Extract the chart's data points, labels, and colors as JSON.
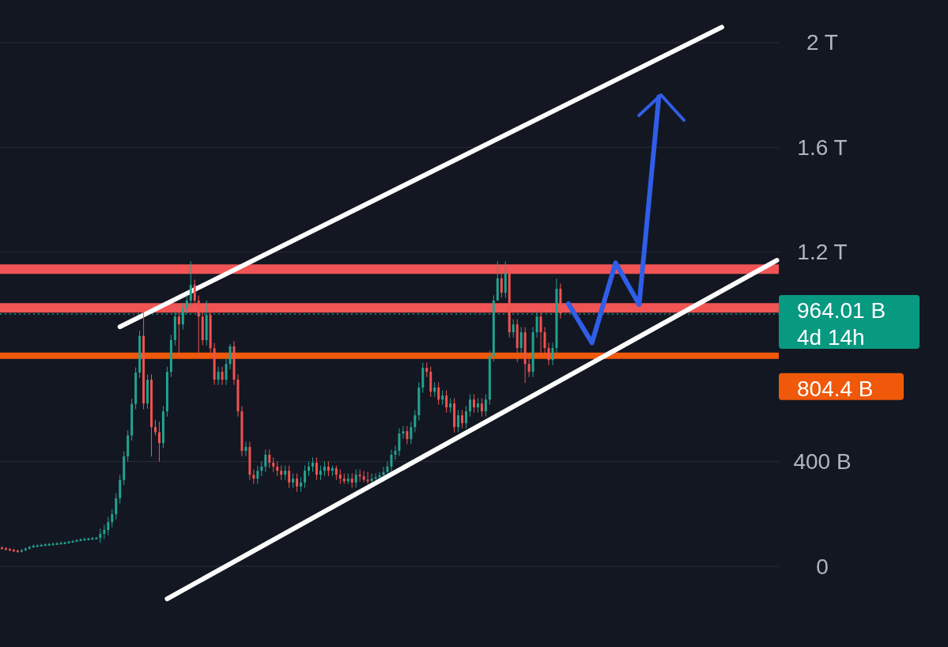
{
  "chart_data": {
    "type": "candlestick",
    "categories": [
      null,
      null,
      null,
      null,
      null,
      null,
      null,
      null,
      null,
      null,
      null,
      null,
      null,
      null,
      null,
      null,
      null,
      null,
      null,
      null,
      null,
      null,
      null,
      null,
      null,
      null,
      null,
      null,
      null,
      null,
      null,
      null,
      null,
      null,
      null,
      null,
      null,
      null,
      null,
      null,
      null,
      null,
      null,
      null,
      null,
      null,
      null,
      null,
      null,
      null,
      null,
      null,
      null,
      null,
      null,
      null,
      null,
      null,
      null,
      null,
      null,
      null,
      null,
      null,
      null,
      null,
      null,
      null,
      null,
      null,
      null,
      null,
      null,
      null,
      null,
      null,
      null,
      null,
      null,
      null,
      null,
      null,
      null,
      null,
      null,
      null,
      null,
      null,
      null,
      null,
      null,
      null,
      null,
      null,
      null,
      null,
      null,
      null,
      null,
      null,
      null,
      null,
      null,
      null,
      null,
      null,
      null,
      null,
      null,
      null,
      null,
      null,
      null,
      null,
      null,
      null,
      null,
      null,
      null,
      null,
      null,
      null,
      null,
      null,
      null,
      null,
      null,
      null,
      null,
      null,
      null,
      null,
      null,
      null,
      null,
      null,
      null,
      null,
      null,
      null,
      null,
      null,
      null,
      null,
      null,
      null,
      null,
      null,
      null,
      null,
      null,
      null,
      null,
      null,
      null,
      null,
      null,
      null,
      null,
      null,
      null,
      null,
      null,
      null,
      null,
      null,
      null,
      null,
      null,
      null,
      null,
      null,
      null,
      null,
      null,
      null,
      null,
      null,
      null,
      null,
      null,
      null,
      null,
      null,
      null,
      null,
      null,
      null,
      null,
      null,
      null,
      null,
      null,
      null,
      null,
      null,
      null,
      null
    ],
    "ohlc": [
      [
        72000000000.0,
        76000000000.0,
        65000000000.0,
        69000000000.0
      ],
      [
        69000000000.0,
        73000000000.0,
        62000000000.0,
        66000000000.0
      ],
      [
        66000000000.0,
        70000000000.0,
        59000000000.0,
        63000000000.0
      ],
      [
        63000000000.0,
        67000000000.0,
        56000000000.0,
        60000000000.0
      ],
      [
        60000000000.0,
        64000000000.0,
        53000000000.0,
        57000000000.0
      ],
      [
        57000000000.0,
        66000000000.0,
        53000000000.0,
        62000000000.0
      ],
      [
        62000000000.0,
        72000000000.0,
        58000000000.0,
        68000000000.0
      ],
      [
        68000000000.0,
        78000000000.0,
        64000000000.0,
        74000000000.0
      ],
      [
        74000000000.0,
        83000000000.0,
        70000000000.0,
        79000000000.0
      ],
      [
        79000000000.0,
        84000000000.0,
        75000000000.0,
        80000000000.0
      ],
      [
        80000000000.0,
        86000000000.0,
        76000000000.0,
        82000000000.0
      ],
      [
        82000000000.0,
        88000000000.0,
        78000000000.0,
        84000000000.0
      ],
      [
        84000000000.0,
        89000000000.0,
        80000000000.0,
        85000000000.0
      ],
      [
        85000000000.0,
        91000000000.0,
        81000000000.0,
        87000000000.0
      ],
      [
        87000000000.0,
        92000000000.0,
        83000000000.0,
        88000000000.0
      ],
      [
        88000000000.0,
        94000000000.0,
        84000000000.0,
        90000000000.0
      ],
      [
        90000000000.0,
        95000000000.0,
        86000000000.0,
        91000000000.0
      ],
      [
        91000000000.0,
        98000000000.0,
        87000000000.0,
        94000000000.0
      ],
      [
        94000000000.0,
        101000000000.0,
        90000000000.0,
        97000000000.0
      ],
      [
        97000000000.0,
        104000000000.0,
        93000000000.0,
        100000000000.0
      ],
      [
        100000000000.0,
        107000000000.0,
        96000000000.0,
        103000000000.0
      ],
      [
        103000000000.0,
        109000000000.0,
        99000000000.0,
        105000000000.0
      ],
      [
        105000000000.0,
        110000000000.0,
        101000000000.0,
        106000000000.0
      ],
      [
        106000000000.0,
        112000000000.0,
        102000000000.0,
        108000000000.0
      ],
      [
        108000000000.0,
        113000000000.0,
        104000000000.0,
        109000000000.0
      ],
      [
        109000000000.0,
        144000000000.0,
        89000000000.0,
        124000000000.0
      ],
      [
        124000000000.0,
        159000000000.0,
        104000000000.0,
        139000000000.0
      ],
      [
        139000000000.0,
        189000000000.0,
        119000000000.0,
        169000000000.0
      ],
      [
        169000000000.0,
        219000000000.0,
        149000000000.0,
        199000000000.0
      ],
      [
        199000000000.0,
        280000000000.0,
        179000000000.0,
        260000000000.0
      ],
      [
        260000000000.0,
        350000000000.0,
        240000000000.0,
        330000000000.0
      ],
      [
        330000000000.0,
        440000000000.0,
        310000000000.0,
        420000000000.0
      ],
      [
        420000000000.0,
        520000000000.0,
        400000000000.0,
        500000000000.0
      ],
      [
        500000000000.0,
        640000000000.0,
        480000000000.0,
        620000000000.0
      ],
      [
        620000000000.0,
        760000000000.0,
        600000000000.0,
        740000000000.0
      ],
      [
        740000000000.0,
        900000000000.0,
        720000000000.0,
        880000000000.0
      ],
      [
        880000000000.0,
        985000000000.0,
        600000000000.0,
        622000000000.0
      ],
      [
        622000000000.0,
        733000000000.0,
        602000000000.0,
        713000000000.0
      ],
      [
        713000000000.0,
        733000000000.0,
        420000000000.0,
        532000000000.0
      ],
      [
        532000000000.0,
        560000000000.0,
        500000000000.0,
        512000000000.0
      ],
      [
        512000000000.0,
        552000000000.0,
        400000000000.0,
        471000000000.0
      ],
      [
        471000000000.0,
        612000000000.0,
        451000000000.0,
        592000000000.0
      ],
      [
        592000000000.0,
        763000000000.0,
        572000000000.0,
        743000000000.0
      ],
      [
        743000000000.0,
        884000000000.0,
        723000000000.0,
        864000000000.0
      ],
      [
        864000000000.0,
        974000000000.0,
        844000000000.0,
        954000000000.0
      ],
      [
        954000000000.0,
        974000000000.0,
        800000000000.0,
        924000000000.0
      ],
      [
        924000000000.0,
        1005000000000.0,
        904000000000.0,
        985000000000.0
      ],
      [
        985000000000.0,
        1035000000000.0,
        965000000000.0,
        1015000000000.0
      ],
      [
        1015000000000.0,
        1165000000000.0,
        995000000000.0,
        1075000000000.0
      ],
      [
        1075000000000.0,
        1095000000000.0,
        995000000000.0,
        1015000000000.0
      ],
      [
        1015000000000.0,
        1034000000000.0,
        800000000000.0,
        954000000000.0
      ],
      [
        954000000000.0,
        974000000000.0,
        844000000000.0,
        864000000000.0
      ],
      [
        864000000000.0,
        1015000000000.0,
        844000000000.0,
        960000000000.0
      ],
      [
        960000000000.0,
        980000000000.0,
        813000000000.0,
        833000000000.0
      ],
      [
        833000000000.0,
        853000000000.0,
        693000000000.0,
        713000000000.0
      ],
      [
        713000000000.0,
        763000000000.0,
        693000000000.0,
        743000000000.0
      ],
      [
        743000000000.0,
        763000000000.0,
        693000000000.0,
        713000000000.0
      ],
      [
        713000000000.0,
        793000000000.0,
        693000000000.0,
        773000000000.0
      ],
      [
        773000000000.0,
        850000000000.0,
        753000000000.0,
        840000000000.0
      ],
      [
        840000000000.0,
        860000000000.0,
        693000000000.0,
        713000000000.0
      ],
      [
        713000000000.0,
        733000000000.0,
        572000000000.0,
        592000000000.0
      ],
      [
        592000000000.0,
        612000000000.0,
        421000000000.0,
        441000000000.0
      ],
      [
        441000000000.0,
        476000000000.0,
        421000000000.0,
        456000000000.0
      ],
      [
        456000000000.0,
        476000000000.0,
        330000000000.0,
        350000000000.0
      ],
      [
        350000000000.0,
        370000000000.0,
        315000000000.0,
        335000000000.0
      ],
      [
        335000000000.0,
        385000000000.0,
        315000000000.0,
        365000000000.0
      ],
      [
        365000000000.0,
        401000000000.0,
        345000000000.0,
        381000000000.0
      ],
      [
        381000000000.0,
        446000000000.0,
        361000000000.0,
        426000000000.0
      ],
      [
        426000000000.0,
        446000000000.0,
        376000000000.0,
        396000000000.0
      ],
      [
        396000000000.0,
        416000000000.0,
        361000000000.0,
        381000000000.0
      ],
      [
        381000000000.0,
        401000000000.0,
        345000000000.0,
        365000000000.0
      ],
      [
        365000000000.0,
        385000000000.0,
        330000000000.0,
        350000000000.0
      ],
      [
        350000000000.0,
        385000000000.0,
        330000000000.0,
        365000000000.0
      ],
      [
        365000000000.0,
        385000000000.0,
        300000000000.0,
        320000000000.0
      ],
      [
        320000000000.0,
        355000000000.0,
        300000000000.0,
        335000000000.0
      ],
      [
        335000000000.0,
        355000000000.0,
        285000000000.0,
        305000000000.0
      ],
      [
        305000000000.0,
        340000000000.0,
        285000000000.0,
        320000000000.0
      ],
      [
        320000000000.0,
        385000000000.0,
        300000000000.0,
        365000000000.0
      ],
      [
        365000000000.0,
        401000000000.0,
        345000000000.0,
        381000000000.0
      ],
      [
        381000000000.0,
        416000000000.0,
        361000000000.0,
        396000000000.0
      ],
      [
        396000000000.0,
        416000000000.0,
        330000000000.0,
        350000000000.0
      ],
      [
        350000000000.0,
        385000000000.0,
        330000000000.0,
        365000000000.0
      ],
      [
        365000000000.0,
        401000000000.0,
        345000000000.0,
        381000000000.0
      ],
      [
        381000000000.0,
        401000000000.0,
        345000000000.0,
        365000000000.0
      ],
      [
        365000000000.0,
        385000000000.0,
        345000000000.0,
        375000000000.0
      ],
      [
        375000000000.0,
        385000000000.0,
        330000000000.0,
        350000000000.0
      ],
      [
        350000000000.0,
        370000000000.0,
        315000000000.0,
        335000000000.0
      ],
      [
        335000000000.0,
        355000000000.0,
        315000000000.0,
        325000000000.0
      ],
      [
        325000000000.0,
        355000000000.0,
        315000000000.0,
        335000000000.0
      ],
      [
        335000000000.0,
        355000000000.0,
        300000000000.0,
        320000000000.0
      ],
      [
        320000000000.0,
        370000000000.0,
        300000000000.0,
        350000000000.0
      ],
      [
        350000000000.0,
        370000000000.0,
        324000000000.0,
        344000000000.0
      ],
      [
        344000000000.0,
        364000000000.0,
        321000000000.0,
        331000000000.0
      ],
      [
        331000000000.0,
        361000000000.0,
        316000000000.0,
        326000000000.0
      ],
      [
        326000000000.0,
        355000000000.0,
        322000000000.0,
        335000000000.0
      ],
      [
        335000000000.0,
        355000000000.0,
        332000000000.0,
        340000000000.0
      ],
      [
        340000000000.0,
        360000000000.0,
        338000000000.0,
        348000000000.0
      ],
      [
        348000000000.0,
        380000000000.0,
        346000000000.0,
        360000000000.0
      ],
      [
        360000000000.0,
        401000000000.0,
        355000000000.0,
        381000000000.0
      ],
      [
        381000000000.0,
        446000000000.0,
        361000000000.0,
        426000000000.0
      ],
      [
        426000000000.0,
        461000000000.0,
        406000000000.0,
        441000000000.0
      ],
      [
        441000000000.0,
        527000000000.0,
        421000000000.0,
        507000000000.0
      ],
      [
        507000000000.0,
        536000000000.0,
        487000000000.0,
        516000000000.0
      ],
      [
        516000000000.0,
        536000000000.0,
        466000000000.0,
        486000000000.0
      ],
      [
        486000000000.0,
        552000000000.0,
        466000000000.0,
        532000000000.0
      ],
      [
        532000000000.0,
        597000000000.0,
        512000000000.0,
        577000000000.0
      ],
      [
        577000000000.0,
        703000000000.0,
        557000000000.0,
        683000000000.0
      ],
      [
        683000000000.0,
        778000000000.0,
        663000000000.0,
        758000000000.0
      ],
      [
        758000000000.0,
        778000000000.0,
        723000000000.0,
        743000000000.0
      ],
      [
        743000000000.0,
        763000000000.0,
        647000000000.0,
        667000000000.0
      ],
      [
        667000000000.0,
        703000000000.0,
        647000000000.0,
        683000000000.0
      ],
      [
        683000000000.0,
        703000000000.0,
        617000000000.0,
        637000000000.0
      ],
      [
        637000000000.0,
        672000000000.0,
        617000000000.0,
        652000000000.0
      ],
      [
        652000000000.0,
        672000000000.0,
        587000000000.0,
        607000000000.0
      ],
      [
        607000000000.0,
        642000000000.0,
        587000000000.0,
        622000000000.0
      ],
      [
        622000000000.0,
        642000000000.0,
        512000000000.0,
        532000000000.0
      ],
      [
        532000000000.0,
        597000000000.0,
        512000000000.0,
        577000000000.0
      ],
      [
        577000000000.0,
        597000000000.0,
        527000000000.0,
        547000000000.0
      ],
      [
        547000000000.0,
        612000000000.0,
        527000000000.0,
        592000000000.0
      ],
      [
        592000000000.0,
        657000000000.0,
        572000000000.0,
        637000000000.0
      ],
      [
        637000000000.0,
        657000000000.0,
        587000000000.0,
        607000000000.0
      ],
      [
        607000000000.0,
        642000000000.0,
        587000000000.0,
        622000000000.0
      ],
      [
        622000000000.0,
        642000000000.0,
        572000000000.0,
        592000000000.0
      ],
      [
        592000000000.0,
        657000000000.0,
        572000000000.0,
        637000000000.0
      ],
      [
        637000000000.0,
        823000000000.0,
        617000000000.0,
        803000000000.0
      ],
      [
        803000000000.0,
        1035000000000.0,
        783000000000.0,
        1015000000000.0
      ],
      [
        1015000000000.0,
        1165000000000.0,
        1015000000000.0,
        1100000000000.0
      ],
      [
        1100000000000.0,
        1120000000000.0,
        1025000000000.0,
        1045000000000.0
      ],
      [
        1045000000000.0,
        1165000000000.0,
        1025000000000.0,
        1120000000000.0
      ],
      [
        1120000000000.0,
        1125000000000.0,
        874000000000.0,
        894000000000.0
      ],
      [
        894000000000.0,
        944000000000.0,
        874000000000.0,
        924000000000.0
      ],
      [
        924000000000.0,
        944000000000.0,
        780000000000.0,
        834000000000.0
      ],
      [
        834000000000.0,
        914000000000.0,
        814000000000.0,
        894000000000.0
      ],
      [
        894000000000.0,
        914000000000.0,
        700000000000.0,
        773000000000.0
      ],
      [
        773000000000.0,
        793000000000.0,
        723000000000.0,
        743000000000.0
      ],
      [
        743000000000.0,
        914000000000.0,
        723000000000.0,
        894000000000.0
      ],
      [
        894000000000.0,
        974000000000.0,
        874000000000.0,
        954000000000.0
      ],
      [
        954000000000.0,
        974000000000.0,
        800000000000.0,
        894000000000.0
      ],
      [
        894000000000.0,
        914000000000.0,
        814000000000.0,
        834000000000.0
      ],
      [
        834000000000.0,
        854000000000.0,
        768000000000.0,
        788000000000.0
      ],
      [
        788000000000.0,
        854000000000.0,
        768000000000.0,
        834000000000.0
      ],
      [
        834000000000.0,
        1099000000000.0,
        814000000000.0,
        1060000000000.0
      ],
      [
        1060000000000.0,
        1080000000000.0,
        946000000000.0,
        966000000000.0
      ],
      null,
      null,
      null,
      null,
      null,
      null,
      null,
      null,
      null,
      null,
      null,
      null,
      null,
      null,
      null,
      null,
      null,
      null,
      null,
      null,
      null,
      null,
      null,
      null,
      null,
      null,
      null,
      null,
      null,
      null,
      null,
      null,
      null,
      null,
      null,
      null,
      null,
      null,
      null,
      null,
      null,
      null,
      null,
      null,
      null,
      null,
      null,
      null,
      null,
      null,
      null,
      null,
      null,
      null,
      null
    ],
    "series": [
      {
        "type": "line",
        "color": "#ffffff",
        "values": [
          null,
          null,
          null,
          null,
          null,
          null,
          null,
          null,
          null,
          null,
          null,
          null,
          null,
          null,
          null,
          null,
          null,
          null,
          null,
          null,
          null,
          null,
          null,
          null,
          null,
          null,
          null,
          null,
          null,
          null,
          915000000000.0,
          null,
          null,
          null,
          null,
          null,
          null,
          null,
          null,
          null,
          null,
          null,
          null,
          null,
          null,
          null,
          null,
          null,
          null,
          null,
          null,
          null,
          null,
          null,
          null,
          null,
          null,
          null,
          null,
          null,
          null,
          null,
          null,
          null,
          null,
          null,
          null,
          null,
          null,
          null,
          null,
          null,
          null,
          null,
          null,
          null,
          null,
          null,
          null,
          null,
          null,
          null,
          null,
          null,
          null,
          null,
          null,
          null,
          null,
          null,
          null,
          null,
          null,
          null,
          null,
          null,
          null,
          null,
          null,
          null,
          null,
          null,
          null,
          null,
          null,
          null,
          null,
          null,
          null,
          null,
          null,
          null,
          null,
          null,
          null,
          null,
          null,
          null,
          null,
          null,
          null,
          null,
          null,
          null,
          null,
          null,
          null,
          null,
          null,
          null,
          null,
          null,
          null,
          null,
          null,
          null,
          null,
          null,
          null,
          null,
          null,
          null,
          null,
          null,
          null,
          null,
          null,
          null,
          null,
          null,
          null,
          null,
          null,
          null,
          null,
          null,
          null,
          null,
          null,
          null,
          null,
          null,
          null,
          null,
          null,
          null,
          null,
          null,
          null,
          null,
          null,
          null,
          null,
          null,
          null,
          null,
          null,
          null,
          null,
          null,
          null,
          null,
          null,
          2059000000000.0,
          null,
          null,
          null,
          null,
          null,
          null,
          null,
          null,
          null,
          null,
          null,
          null,
          null,
          null
        ]
      },
      {
        "type": "line",
        "color": "#ffffff",
        "values": [
          null,
          null,
          null,
          null,
          null,
          null,
          null,
          null,
          null,
          null,
          null,
          null,
          null,
          null,
          null,
          null,
          null,
          null,
          null,
          null,
          null,
          null,
          null,
          null,
          null,
          null,
          null,
          null,
          null,
          null,
          null,
          null,
          null,
          null,
          null,
          null,
          null,
          null,
          null,
          null,
          null,
          null,
          -124000000000.0,
          null,
          null,
          null,
          null,
          null,
          null,
          null,
          null,
          null,
          null,
          null,
          null,
          null,
          null,
          null,
          null,
          null,
          null,
          null,
          null,
          null,
          null,
          null,
          null,
          null,
          null,
          null,
          null,
          null,
          null,
          null,
          null,
          null,
          null,
          null,
          null,
          null,
          null,
          null,
          null,
          null,
          null,
          null,
          null,
          null,
          null,
          null,
          null,
          null,
          null,
          null,
          null,
          null,
          null,
          null,
          null,
          null,
          null,
          null,
          null,
          null,
          null,
          null,
          null,
          null,
          null,
          null,
          null,
          null,
          null,
          null,
          null,
          null,
          null,
          null,
          null,
          null,
          null,
          null,
          null,
          null,
          null,
          null,
          null,
          null,
          null,
          null,
          null,
          null,
          null,
          null,
          null,
          null,
          null,
          null,
          null,
          null,
          null,
          null,
          null,
          null,
          null,
          null,
          null,
          null,
          null,
          null,
          null,
          null,
          null,
          null,
          null,
          null,
          null,
          null,
          null,
          null,
          null,
          null,
          null,
          null,
          null,
          null,
          null,
          null,
          null,
          null,
          null,
          null,
          null,
          null,
          null,
          null,
          null,
          null,
          null,
          null,
          null,
          null,
          null,
          null,
          null,
          null,
          null,
          null,
          null,
          null,
          null,
          null,
          null,
          null,
          null,
          null,
          null,
          1169000000000.0
        ]
      },
      {
        "type": "line",
        "color": "#2f5ee8",
        "values": [
          null,
          null,
          null,
          null,
          null,
          null,
          null,
          null,
          null,
          null,
          null,
          null,
          null,
          null,
          null,
          null,
          null,
          null,
          null,
          null,
          null,
          null,
          null,
          null,
          null,
          null,
          null,
          null,
          null,
          null,
          null,
          null,
          null,
          null,
          null,
          null,
          null,
          null,
          null,
          null,
          null,
          null,
          null,
          null,
          null,
          null,
          null,
          null,
          null,
          null,
          null,
          null,
          null,
          null,
          null,
          null,
          null,
          null,
          null,
          null,
          null,
          null,
          null,
          null,
          null,
          null,
          null,
          null,
          null,
          null,
          null,
          null,
          null,
          null,
          null,
          null,
          null,
          null,
          null,
          null,
          null,
          null,
          null,
          null,
          null,
          null,
          null,
          null,
          null,
          null,
          null,
          null,
          null,
          null,
          null,
          null,
          null,
          null,
          null,
          null,
          null,
          null,
          null,
          null,
          null,
          null,
          null,
          null,
          null,
          null,
          null,
          null,
          null,
          null,
          null,
          null,
          null,
          null,
          null,
          null,
          null,
          null,
          null,
          null,
          null,
          null,
          null,
          null,
          null,
          null,
          null,
          null,
          null,
          null,
          null,
          null,
          null,
          null,
          null,
          null,
          null,
          null,
          null,
          null,
          1003000000000.0,
          null,
          null,
          null,
          null,
          null,
          854000000000.0,
          null,
          null,
          null,
          null,
          null,
          1159000000000.0,
          null,
          null,
          null,
          null,
          null,
          1000000000000.0,
          null,
          null,
          null,
          null,
          1793000000000.0,
          null,
          null,
          null,
          null,
          null,
          null,
          null,
          null,
          null,
          null,
          null,
          null,
          null,
          null,
          null,
          null,
          null,
          null,
          null,
          null,
          null,
          null,
          null,
          null,
          null,
          null,
          null,
          null,
          null,
          null
        ]
      }
    ],
    "ylim": [
      -308000000000.0,
      2163000000000.0
    ],
    "yticks": [
      0,
      {
        "value": 400000000000.0,
        "label": "400 B"
      },
      {
        "value": 800000000000.0,
        "label": null
      },
      {
        "value": 1200000000000.0,
        "label": "1.2 T"
      },
      {
        "value": 1600000000000.0,
        "label": "1.6 T"
      },
      {
        "value": 2000000000000.0,
        "label": "2 T"
      }
    ],
    "tick_labels": "y",
    "grid": "y",
    "ref_lines": [
      {
        "axis": "y",
        "value": 1135000000000.0,
        "color": "#f05454"
      },
      {
        "axis": "y",
        "value": 987000000000.0,
        "color": "#f05454"
      },
      {
        "axis": "y",
        "value": 804400000000.0,
        "label": "804.4 B",
        "color": "#f0580a"
      },
      {
        "axis": "y",
        "value": 964010000000.0,
        "label": "964.01 B",
        "color": "#089981",
        "line_style": "dotted"
      }
    ],
    "annotations": [
      "4d 14h"
    ]
  }
}
